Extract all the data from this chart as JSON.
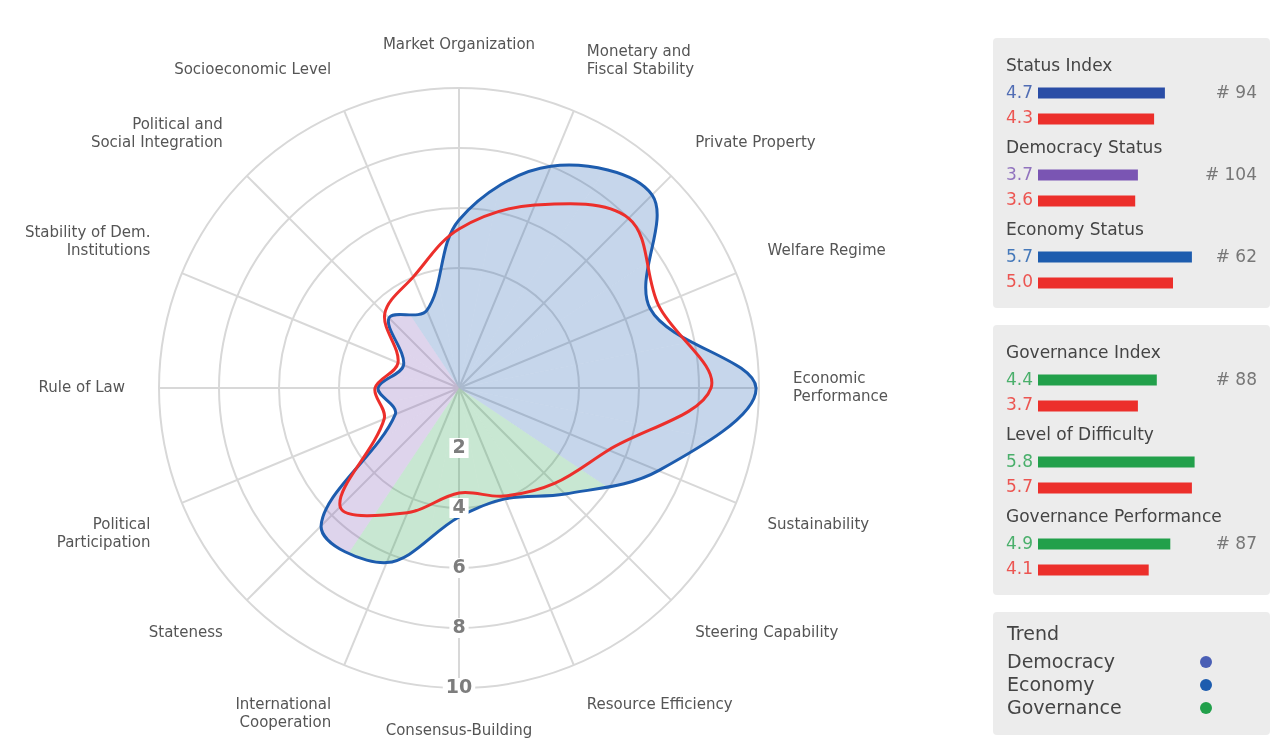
{
  "chart_data": [
    {
      "type": "radar",
      "categories": [
        "Market Organization",
        "Monetary and Fiscal Stability",
        "Private Property",
        "Welfare Regime",
        "Economic Performance",
        "Sustainability",
        "Steering Capability",
        "Resource Efficiency",
        "Consensus-Building",
        "International Cooperation",
        "Stateness",
        "Political Participation",
        "Rule of Law",
        "Stability of Dem. Institutions",
        "Political and Social Integration",
        "Socioeconomic Level"
      ],
      "series": [
        {
          "colors": [
            "#1d5cae",
            "#1d5cae",
            "#1d5cae",
            "#1d5cae",
            "#1d5cae",
            "#1d5cae",
            "#22a04b",
            "#22a04b",
            "#22a04b",
            "#22a04b",
            "#7a55b3",
            "#7a55b3",
            "#7a55b3",
            "#7a55b3",
            "#7a55b3",
            "#1d5cae"
          ],
          "values": [
            5.6,
            8.0,
            9.1,
            6.9,
            9.9,
            7.2,
            5.0,
            4.0,
            4.3,
            6.3,
            6.5,
            2.3,
            2.7,
            2.0,
            3.3,
            2.8
          ]
        },
        {
          "color": "#ec2f2b",
          "values": [
            5.3,
            6.6,
            8.0,
            7.2,
            8.4,
            5.4,
            4.5,
            3.9,
            3.5,
            4.5,
            5.6,
            2.7,
            2.8,
            2.2,
            3.5,
            4.0
          ]
        }
      ],
      "ylim": [
        0,
        10
      ],
      "yticks": [
        2,
        4,
        6,
        8,
        10
      ],
      "grid": true,
      "marker": "none"
    },
    {
      "type": "bar",
      "orientation": "horizontal",
      "categories": [
        "Status Index",
        "Democracy Status",
        "Economy Status"
      ],
      "series": [
        {
          "colors": [
            "#2a4da6",
            "#7a55b3",
            "#1d5cae"
          ],
          "values": [
            4.7,
            3.7,
            5.7
          ],
          "value_labels": [
            "4.7",
            "3.7",
            "5.7"
          ]
        },
        {
          "color": "#ec2f2b",
          "values": [
            4.3,
            3.6,
            5.0
          ],
          "value_labels": [
            "4.3",
            "3.6",
            "5.0"
          ]
        }
      ],
      "annotations": [
        "# 94",
        "# 104",
        "# 62"
      ]
    },
    {
      "type": "bar",
      "orientation": "horizontal",
      "categories": [
        "Governance Index",
        "Level of Difficulty",
        "Governance Performance"
      ],
      "series": [
        {
          "colors": [
            "#22a04b",
            "#22a04b",
            "#22a04b"
          ],
          "values": [
            4.4,
            5.8,
            4.9
          ],
          "value_labels": [
            "4.4",
            "5.8",
            "4.9"
          ]
        },
        {
          "color": "#ec2f2b",
          "values": [
            3.7,
            5.7,
            4.1
          ],
          "value_labels": [
            "3.7",
            "5.7",
            "4.1"
          ]
        }
      ],
      "annotations": [
        "# 88",
        null,
        "# 87"
      ]
    },
    {
      "type": "other",
      "title": "Trend",
      "categories": [
        "Democracy",
        "Economy",
        "Governance"
      ]
    }
  ]
}
